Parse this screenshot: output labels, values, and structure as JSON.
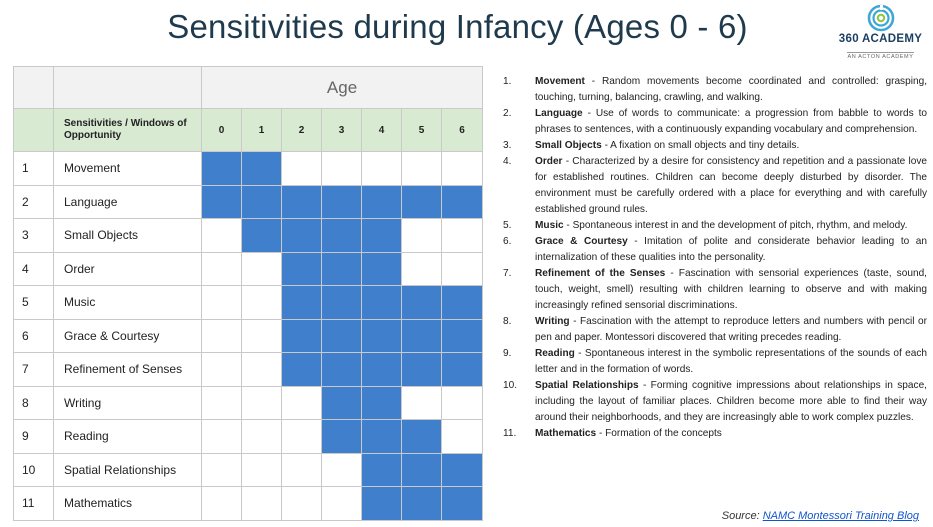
{
  "title": "Sensitivities during Infancy (Ages 0 - 6)",
  "logo": {
    "name": "360 ACADEMY",
    "sub": "AN ACTON ACADEMY",
    "icon": "spiral-icon",
    "colors": {
      "spiral_outer": "#3fa7d6",
      "spiral_inner": "#8dc63f",
      "text": "#1b3f63"
    }
  },
  "colors": {
    "active_cell": "#3f7fcb",
    "header_row": "#d9ead3",
    "age_row": "#f2f2f2",
    "title": "#1f3a4d"
  },
  "table": {
    "age_header": "Age",
    "sensitivity_header": "Sensitivities / Windows of Opportunity",
    "ages": [
      "0",
      "1",
      "2",
      "3",
      "4",
      "5",
      "6"
    ],
    "rows": [
      {
        "num": "1",
        "name": "Movement",
        "active": [
          1,
          1,
          0,
          0,
          0,
          0,
          0
        ]
      },
      {
        "num": "2",
        "name": "Language",
        "active": [
          1,
          1,
          1,
          1,
          1,
          1,
          1
        ]
      },
      {
        "num": "3",
        "name": "Small Objects",
        "active": [
          0,
          1,
          1,
          1,
          1,
          0,
          0
        ]
      },
      {
        "num": "4",
        "name": "Order",
        "active": [
          0,
          0,
          1,
          1,
          1,
          0,
          0
        ]
      },
      {
        "num": "5",
        "name": "Music",
        "active": [
          0,
          0,
          1,
          1,
          1,
          1,
          1
        ]
      },
      {
        "num": "6",
        "name": "Grace & Courtesy",
        "active": [
          0,
          0,
          1,
          1,
          1,
          1,
          1
        ]
      },
      {
        "num": "7",
        "name": "Refinement of Senses",
        "active": [
          0,
          0,
          1,
          1,
          1,
          1,
          1
        ]
      },
      {
        "num": "8",
        "name": "Writing",
        "active": [
          0,
          0,
          0,
          1,
          1,
          0,
          0
        ]
      },
      {
        "num": "9",
        "name": "Reading",
        "active": [
          0,
          0,
          0,
          1,
          1,
          1,
          0
        ]
      },
      {
        "num": "10",
        "name": "Spatial Relationships",
        "active": [
          0,
          0,
          0,
          0,
          1,
          1,
          1
        ]
      },
      {
        "num": "11",
        "name": "Mathematics",
        "active": [
          0,
          0,
          0,
          0,
          1,
          1,
          1
        ]
      }
    ]
  },
  "notes": [
    {
      "num": "1.",
      "term": "Movement",
      "text": " - Random movements become coordinated and controlled: grasping, touching, turning, balancing, crawling, and walking."
    },
    {
      "num": "2.",
      "term": "Language",
      "text": " - Use of words to communicate: a progression from babble to words to phrases to sentences, with a continuously expanding vocabulary and comprehension."
    },
    {
      "num": "3.",
      "term": "Small Objects",
      "text": " - A fixation on small objects and tiny details."
    },
    {
      "num": "4.",
      "term": "Order",
      "text": " - Characterized by a desire for consistency and repetition and a passionate love for established routines. Children can become deeply disturbed by disorder. The environment must be carefully ordered with a place for everything and with carefully established ground rules."
    },
    {
      "num": "5.",
      "term": "Music",
      "text": " - Spontaneous interest in and the development of pitch, rhythm, and melody."
    },
    {
      "num": "6.",
      "term": "Grace & Courtesy",
      "text": " - Imitation of polite and considerate behavior leading to an internalization of these qualities into the personality."
    },
    {
      "num": "7.",
      "term": "Refinement of the Senses",
      "text": " - Fascination with sensorial experiences (taste, sound, touch, weight, smell) resulting with children learning to observe and with making increasingly refined sensorial discriminations."
    },
    {
      "num": "8.",
      "term": "Writing",
      "text": " - Fascination with the attempt to reproduce letters and numbers with pencil or pen and paper. Montessori discovered that writing precedes reading."
    },
    {
      "num": "9.",
      "term": "Reading",
      "text": " - Spontaneous interest in the symbolic representations of the sounds of each letter and in the formation of words."
    },
    {
      "num": "10.",
      "term": "Spatial Relationships",
      "text": " - Forming cognitive impressions about relationships in space, including the layout of familiar places. Children become more able to find their way around their neighborhoods, and they are increasingly able to work complex puzzles."
    },
    {
      "num": "11.",
      "term": "Mathematics",
      "text": " - Formation of the concepts"
    }
  ],
  "source": {
    "prefix": "Source: ",
    "link_text": "NAMC Montessori Training Blog"
  }
}
